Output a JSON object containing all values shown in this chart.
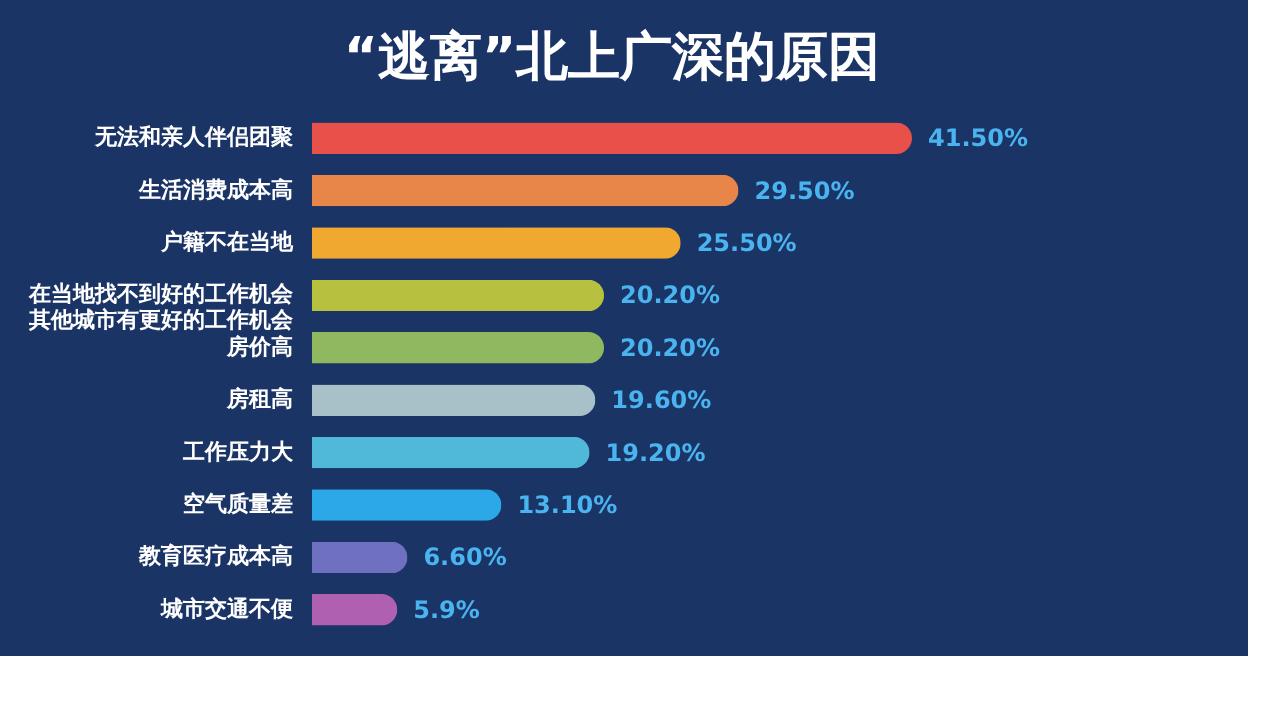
{
  "chart_data": {
    "type": "bar",
    "orientation": "horizontal",
    "title": "“逃离”北上广深的原因",
    "categories": [
      "无法和亲人伴侣团聚",
      "生活消费成本高",
      "户籍不在当地",
      "在当地找不到好的工作机会其他城市有更好的工作机会",
      "房价高",
      "房租高",
      "工作压力大",
      "空气质量差",
      "教育医疗成本高",
      "城市交通不便"
    ],
    "values": [
      41.5,
      29.5,
      25.5,
      20.2,
      20.2,
      19.6,
      19.2,
      13.1,
      6.6,
      5.9
    ],
    "colors": [
      "#e8504a",
      "#e8864a",
      "#f0a830",
      "#b8c040",
      "#90b860",
      "#a8c0c8",
      "#50b8d8",
      "#2aa8e8",
      "#7070c0",
      "#b060b0"
    ],
    "value_labels": [
      "41.50%",
      "29.50%",
      "25.50%",
      "20.20%",
      "20.20%",
      "19.60%",
      "19.20%",
      "13.10%",
      "6.60%",
      "5.9%"
    ],
    "tick_labels": "y",
    "grid": false
  }
}
